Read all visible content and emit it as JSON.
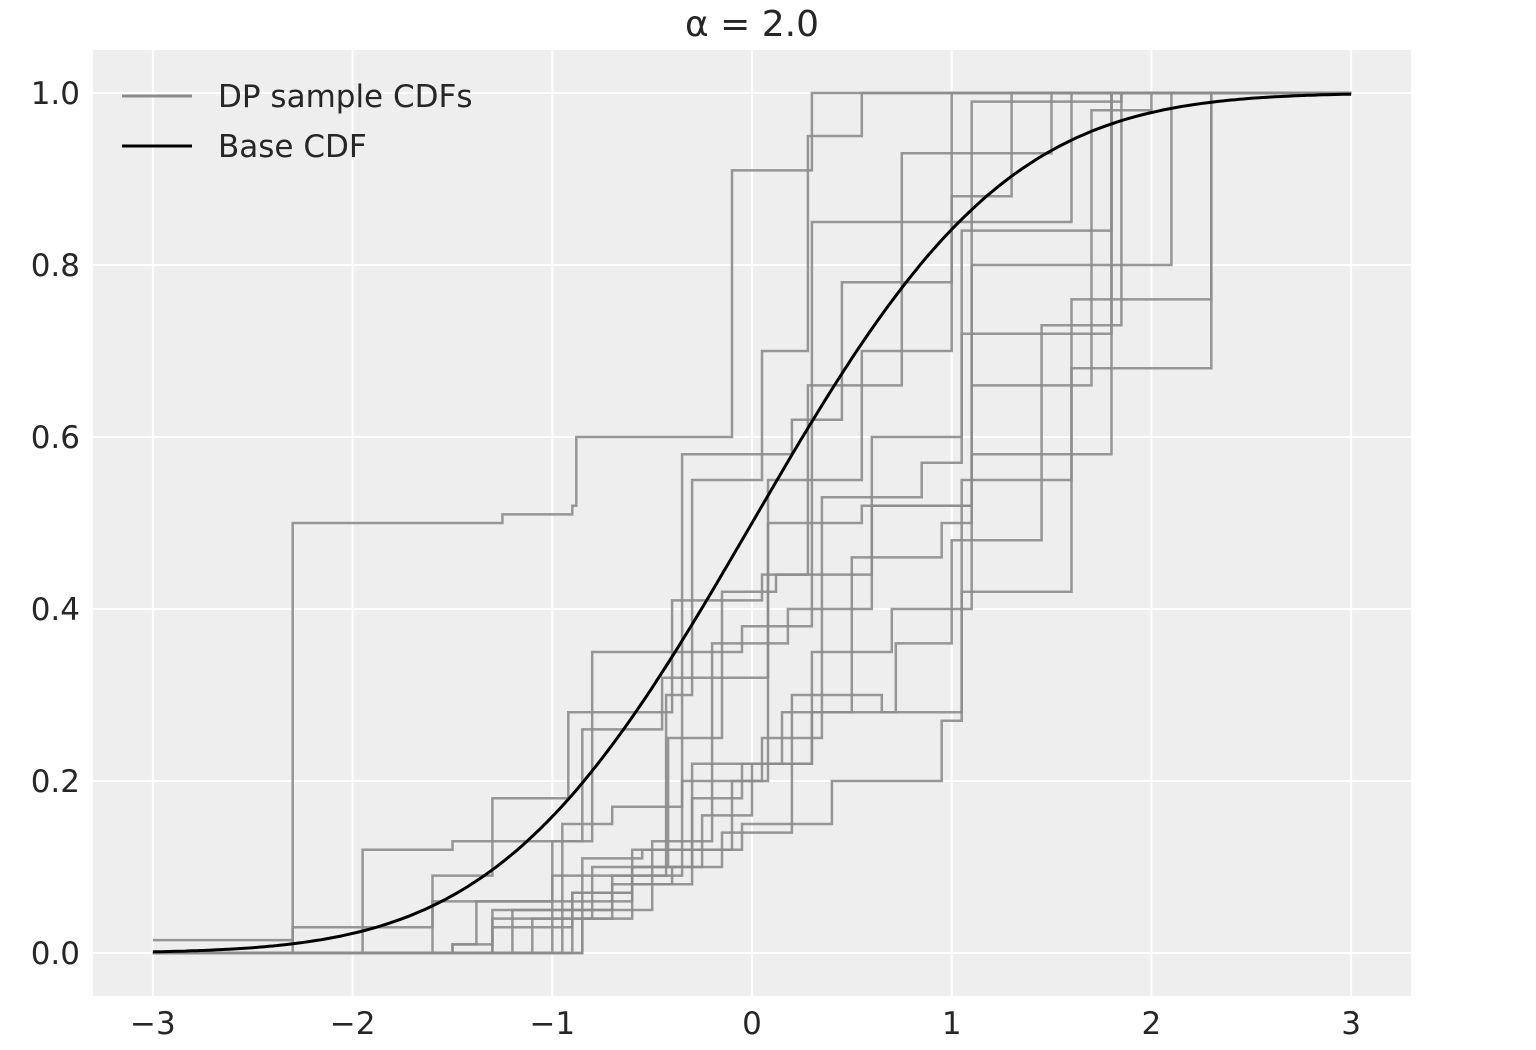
{
  "chart_data": {
    "type": "line",
    "title": "α = 2.0",
    "xlim": [
      -3.3,
      3.3
    ],
    "ylim": [
      -0.05,
      1.05
    ],
    "xticks": [
      -3,
      -2,
      -1,
      0,
      1,
      2,
      3
    ],
    "xtick_labels": [
      "−3",
      "−2",
      "−1",
      "0",
      "1",
      "2",
      "3"
    ],
    "yticks": [
      0.0,
      0.2,
      0.4,
      0.6,
      0.8,
      1.0
    ],
    "ytick_labels": [
      "0.0",
      "0.2",
      "0.4",
      "0.6",
      "0.8",
      "1.0"
    ],
    "grid": true,
    "legend": {
      "position": "top-left",
      "entries": [
        {
          "label": "DP sample CDFs",
          "color": "#8c8c8c"
        },
        {
          "label": "Base CDF",
          "color": "#000000"
        }
      ]
    },
    "base_cdf": {
      "name": "Base CDF",
      "distribution": "standard normal",
      "x_range": [
        -3,
        3
      ],
      "color": "#000000"
    },
    "sample_color": "#8c8c8c",
    "samples": [
      [
        [
          -3.0,
          0.015
        ],
        [
          -2.3,
          0.5
        ],
        [
          -1.25,
          0.51
        ],
        [
          -0.9,
          0.52
        ],
        [
          -0.88,
          0.6
        ],
        [
          -0.1,
          0.91
        ],
        [
          0.3,
          1.0
        ],
        [
          3.0,
          1.0
        ]
      ],
      [
        [
          -3.0,
          0.0
        ],
        [
          -2.3,
          0.03
        ],
        [
          -1.6,
          0.06
        ],
        [
          -1.0,
          0.09
        ],
        [
          -0.43,
          0.3
        ],
        [
          -0.3,
          0.55
        ],
        [
          0.05,
          0.7
        ],
        [
          0.28,
          0.95
        ],
        [
          0.55,
          1.0
        ],
        [
          3.0,
          1.0
        ]
      ],
      [
        [
          -3.0,
          0.0
        ],
        [
          -2.15,
          0.0
        ],
        [
          -1.3,
          0.05
        ],
        [
          -1.0,
          0.13
        ],
        [
          -0.8,
          0.35
        ],
        [
          -0.05,
          0.38
        ],
        [
          0.3,
          0.85
        ],
        [
          1.1,
          0.99
        ],
        [
          1.85,
          1.0
        ],
        [
          3.0,
          1.0
        ]
      ],
      [
        [
          -3.0,
          0.0
        ],
        [
          -1.95,
          0.12
        ],
        [
          -1.5,
          0.13
        ],
        [
          -0.85,
          0.26
        ],
        [
          -0.45,
          0.32
        ],
        [
          0.08,
          0.55
        ],
        [
          0.55,
          0.7
        ],
        [
          1.0,
          0.88
        ],
        [
          1.3,
          1.0
        ],
        [
          3.0,
          1.0
        ]
      ],
      [
        [
          -3.0,
          0.0
        ],
        [
          -1.5,
          0.01
        ],
        [
          -1.38,
          0.06
        ],
        [
          -0.95,
          0.15
        ],
        [
          -0.7,
          0.17
        ],
        [
          -0.35,
          0.58
        ],
        [
          0.2,
          0.62
        ],
        [
          0.45,
          0.78
        ],
        [
          1.0,
          1.0
        ],
        [
          3.0,
          1.0
        ]
      ],
      [
        [
          -3.0,
          0.0
        ],
        [
          -2.0,
          0.0
        ],
        [
          -1.6,
          0.09
        ],
        [
          -1.3,
          0.18
        ],
        [
          -0.92,
          0.28
        ],
        [
          -0.4,
          0.41
        ],
        [
          0.05,
          0.44
        ],
        [
          0.28,
          0.66
        ],
        [
          0.75,
          0.93
        ],
        [
          1.5,
          1.0
        ],
        [
          3.0,
          1.0
        ]
      ],
      [
        [
          -3.0,
          0.0
        ],
        [
          -1.2,
          0.0
        ],
        [
          -0.9,
          0.07
        ],
        [
          -0.6,
          0.1
        ],
        [
          -0.42,
          0.25
        ],
        [
          -0.15,
          0.42
        ],
        [
          0.12,
          0.44
        ],
        [
          0.6,
          0.6
        ],
        [
          1.05,
          0.84
        ],
        [
          1.8,
          1.0
        ],
        [
          3.0,
          1.0
        ]
      ],
      [
        [
          -3.0,
          0.0
        ],
        [
          -1.5,
          0.01
        ],
        [
          -1.3,
          0.04
        ],
        [
          -0.8,
          0.1
        ],
        [
          -0.5,
          0.13
        ],
        [
          -0.2,
          0.36
        ],
        [
          0.18,
          0.4
        ],
        [
          0.6,
          0.52
        ],
        [
          1.1,
          0.8
        ],
        [
          2.1,
          1.0
        ],
        [
          3.0,
          1.0
        ]
      ],
      [
        [
          -3.0,
          0.0
        ],
        [
          -1.4,
          0.0
        ],
        [
          -1.2,
          0.05
        ],
        [
          -0.85,
          0.11
        ],
        [
          -0.55,
          0.12
        ],
        [
          -0.1,
          0.2
        ],
        [
          0.08,
          0.5
        ],
        [
          0.55,
          0.52
        ],
        [
          1.1,
          0.85
        ],
        [
          1.6,
          1.0
        ],
        [
          3.0,
          1.0
        ]
      ],
      [
        [
          -3.0,
          0.0
        ],
        [
          -1.25,
          0.0
        ],
        [
          -1.1,
          0.04
        ],
        [
          -0.7,
          0.09
        ],
        [
          -0.35,
          0.2
        ],
        [
          0.05,
          0.25
        ],
        [
          0.35,
          0.53
        ],
        [
          0.85,
          0.57
        ],
        [
          1.05,
          0.72
        ],
        [
          1.8,
          1.0
        ],
        [
          3.0,
          1.0
        ]
      ],
      [
        [
          -3.0,
          0.0
        ],
        [
          -1.3,
          0.0
        ],
        [
          -0.95,
          0.06
        ],
        [
          -0.6,
          0.12
        ],
        [
          -0.3,
          0.18
        ],
        [
          -0.05,
          0.22
        ],
        [
          0.3,
          0.35
        ],
        [
          0.7,
          0.4
        ],
        [
          1.1,
          0.58
        ],
        [
          1.78,
          0.58
        ],
        [
          1.8,
          1.0
        ],
        [
          3.0,
          1.0
        ]
      ],
      [
        [
          -3.0,
          0.0
        ],
        [
          -1.0,
          0.0
        ],
        [
          -0.85,
          0.04
        ],
        [
          -0.6,
          0.08
        ],
        [
          -0.4,
          0.1
        ],
        [
          -0.15,
          0.14
        ],
        [
          0.2,
          0.3
        ],
        [
          0.65,
          0.28
        ],
        [
          1.05,
          0.42
        ],
        [
          1.6,
          0.68
        ],
        [
          2.3,
          1.0
        ],
        [
          3.0,
          1.0
        ]
      ],
      [
        [
          -3.0,
          0.0
        ],
        [
          -1.2,
          0.0
        ],
        [
          -1.0,
          0.05
        ],
        [
          -0.7,
          0.08
        ],
        [
          -0.3,
          0.12
        ],
        [
          -0.05,
          0.15
        ],
        [
          0.4,
          0.2
        ],
        [
          0.95,
          0.27
        ],
        [
          1.05,
          0.55
        ],
        [
          1.6,
          0.76
        ],
        [
          2.3,
          1.0
        ],
        [
          3.0,
          1.0
        ]
      ],
      [
        [
          -3.0,
          0.0
        ],
        [
          -1.1,
          0.0
        ],
        [
          -0.85,
          0.05
        ],
        [
          -0.5,
          0.1
        ],
        [
          -0.25,
          0.16
        ],
        [
          0.0,
          0.22
        ],
        [
          0.3,
          0.28
        ],
        [
          0.72,
          0.36
        ],
        [
          1.0,
          0.48
        ],
        [
          1.45,
          0.73
        ],
        [
          1.85,
          1.0
        ],
        [
          3.0,
          1.0
        ]
      ],
      [
        [
          -3.0,
          0.0
        ],
        [
          -1.45,
          0.0
        ],
        [
          -1.3,
          0.03
        ],
        [
          -0.9,
          0.07
        ],
        [
          -0.6,
          0.1
        ],
        [
          -0.3,
          0.22
        ],
        [
          0.15,
          0.28
        ],
        [
          0.5,
          0.46
        ],
        [
          0.95,
          0.5
        ],
        [
          1.1,
          0.66
        ],
        [
          1.7,
          0.98
        ],
        [
          2.0,
          1.0
        ],
        [
          3.0,
          1.0
        ]
      ]
    ]
  }
}
